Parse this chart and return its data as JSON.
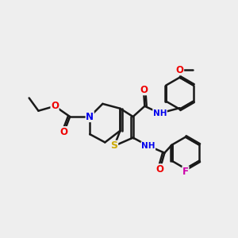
{
  "background_color": "#eeeeee",
  "atom_colors": {
    "N": "#0000ee",
    "O": "#ee0000",
    "S": "#ccaa00",
    "F": "#cc00aa",
    "C": "#1a1a1a"
  },
  "bond_lw": 1.8,
  "font_size": 8.5,
  "dpi": 100
}
